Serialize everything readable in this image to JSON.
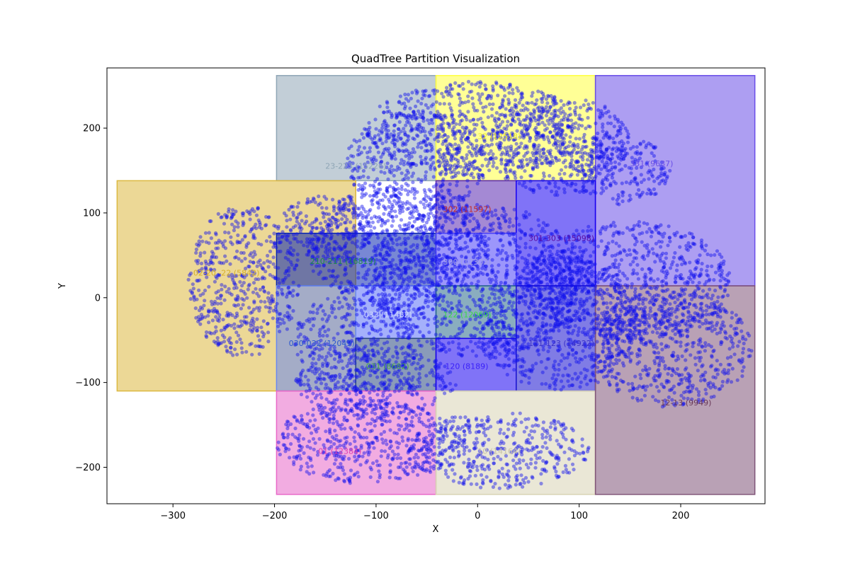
{
  "chart_data": {
    "type": "scatter",
    "title": "QuadTree Partition Visualization",
    "xlabel": "X",
    "ylabel": "Y",
    "xlim": [
      -365,
      283
    ],
    "ylim": [
      -243,
      271
    ],
    "xticks": [
      -300,
      -200,
      -100,
      0,
      100,
      200
    ],
    "yticks": [
      -200,
      -100,
      0,
      100,
      200
    ],
    "grid": false,
    "point_color": "#1010ee",
    "regions": [
      {
        "label": "23-223 (15226)",
        "x0": -198,
        "x1": -41,
        "y0": 138,
        "y1": 262,
        "color": "#8fa6b6",
        "label_color": "#8fa6b6",
        "lx": -150,
        "ly": 152
      },
      {
        "label": "32 (12518)",
        "x0": -41,
        "x1": 116,
        "y0": 138,
        "y1": 262,
        "color": "#ffff40",
        "label_color": "#e8e830",
        "lx": 0,
        "ly": 187
      },
      {
        "label": "331 (9637)",
        "x0": 116,
        "x1": 273,
        "y0": 14,
        "y1": 262,
        "color": "#6a4ee8",
        "label_color": "#6a4ee8",
        "lx": 150,
        "ly": 155
      },
      {
        "label": "02-20 -22 (5842)",
        "x0": -355,
        "x1": -120,
        "y0": -110,
        "y1": 138,
        "color": "#dcb840",
        "label_color": "#d8b02a",
        "lx": -280,
        "ly": 26
      },
      {
        "label": "302 (11597)",
        "x0": -41,
        "x1": 38,
        "y0": 76,
        "y1": 138,
        "color": "#5a28b0",
        "label_color": "#c02a2a",
        "lx": -34,
        "ly": 101
      },
      {
        "label": "301-303 (15098)",
        "x0": 38,
        "x1": 116,
        "y0": 14,
        "y1": 138,
        "color": "#1800f0",
        "label_color": "#5a0aa0",
        "lx": 50,
        "ly": 67
      },
      {
        "label": "210-211 (16819)",
        "x0": -198,
        "x1": -41,
        "y0": 14,
        "y1": 76,
        "color": "#0a26b0",
        "label_color": "#1e8a4a",
        "lx": -165,
        "ly": 40
      },
      {
        "label": "300 (12302)",
        "x0": -41,
        "x1": 38,
        "y0": 14,
        "y1": 76,
        "color": "#4a40f8",
        "label_color": "#a0a0e0",
        "lx": -34,
        "ly": 39
      },
      {
        "label": "033 (11482)",
        "x0": -120,
        "x1": -41,
        "y0": -48,
        "y1": 14,
        "color": "#5a70f8",
        "label_color": "#d0d8ff",
        "lx": -112,
        "ly": -23
      },
      {
        "label": "122 (12069)",
        "x0": -41,
        "x1": 38,
        "y0": -48,
        "y1": 14,
        "color": "#2a6a8a",
        "label_color": "#3ad84a",
        "lx": -34,
        "ly": -23
      },
      {
        "label": "030-032 (12049)",
        "x0": -198,
        "x1": -120,
        "y0": -110,
        "y1": 14,
        "color": "#6a88f0",
        "label_color": "#2a58d0",
        "lx": -186,
        "ly": -57
      },
      {
        "label": "031 (8682)",
        "x0": -120,
        "x1": -41,
        "y0": -110,
        "y1": -48,
        "color": "#2a4880",
        "label_color": "#4aa848",
        "lx": -110,
        "ly": -84
      },
      {
        "label": "120 (8189)",
        "x0": -41,
        "x1": 38,
        "y0": -110,
        "y1": -48,
        "color": "#1800f0",
        "label_color": "#3a20f8",
        "lx": -32,
        "ly": -84
      },
      {
        "label": "121-123 (14922)",
        "x0": 38,
        "x1": 116,
        "y0": -110,
        "y1": 14,
        "color": "#1810d0",
        "label_color": "#3a30c8",
        "lx": 50,
        "ly": -57
      },
      {
        "label": "01 (12384)",
        "x0": -198,
        "x1": -41,
        "y0": -232,
        "y1": -110,
        "color": "#e868c8",
        "label_color": "#e040b0",
        "lx": -157,
        "ly": -184
      },
      {
        "label": "10 (14164)",
        "x0": -41,
        "x1": 116,
        "y0": -232,
        "y1": -110,
        "color": "#d8d4b4",
        "label_color": "#c8c4a8",
        "lx": 0,
        "ly": -184
      },
      {
        "label": "12-13 (9949)",
        "x0": 116,
        "x1": 273,
        "y0": -232,
        "y1": 14,
        "color": "#805478",
        "label_color": "#6a3a5a",
        "lx": 180,
        "ly": -127
      }
    ]
  }
}
